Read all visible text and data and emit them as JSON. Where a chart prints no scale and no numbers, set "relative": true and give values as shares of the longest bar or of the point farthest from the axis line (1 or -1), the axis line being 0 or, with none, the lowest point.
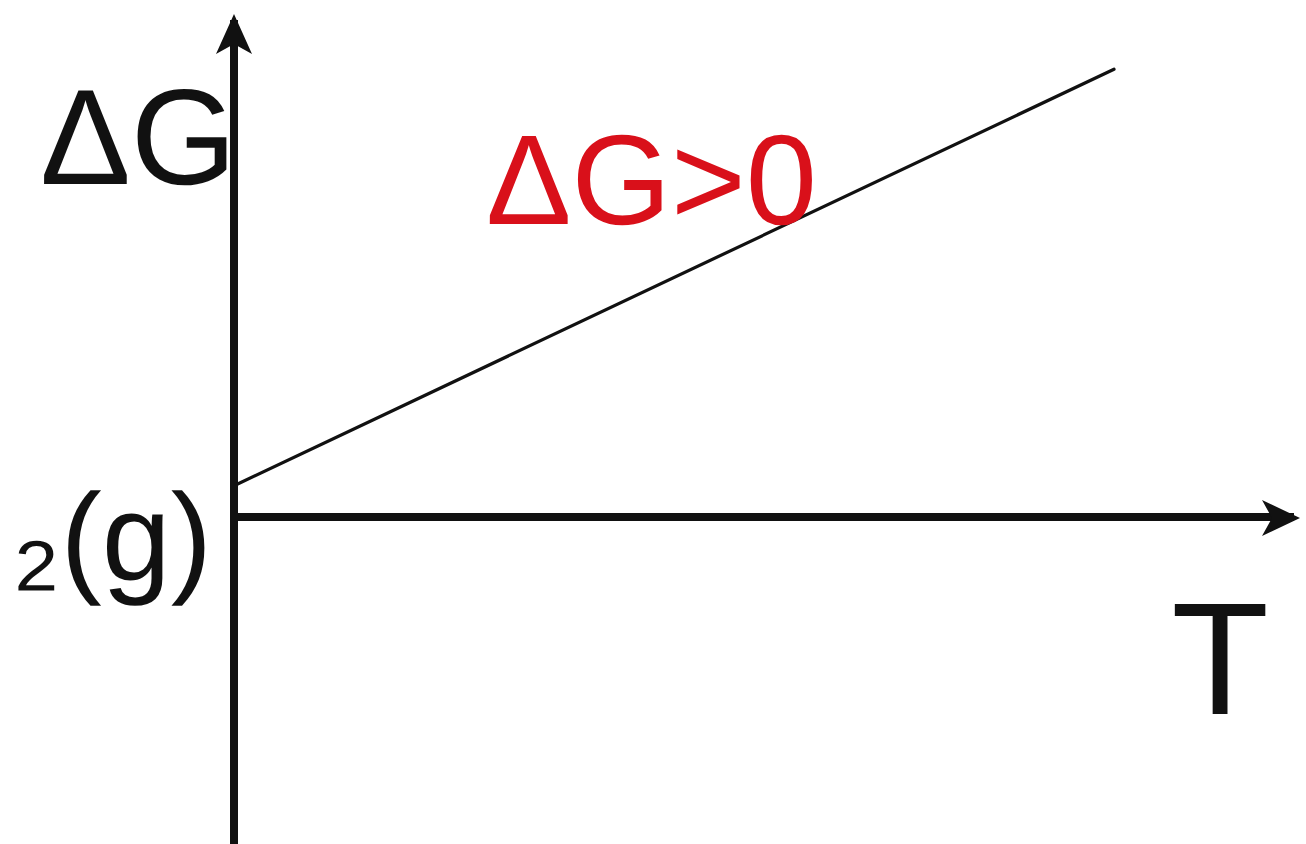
{
  "chart_data": {
    "type": "line",
    "xlabel": "T",
    "ylabel": "ΔG",
    "annotations": [
      "ΔG>0",
      "₂(g)"
    ],
    "categories": [
      null,
      null
    ],
    "series": [
      {
        "color": "#111111",
        "values": [
          0.07,
          1
        ]
      }
    ],
    "relative": true,
    "marker": "none",
    "line_style": "solid"
  }
}
